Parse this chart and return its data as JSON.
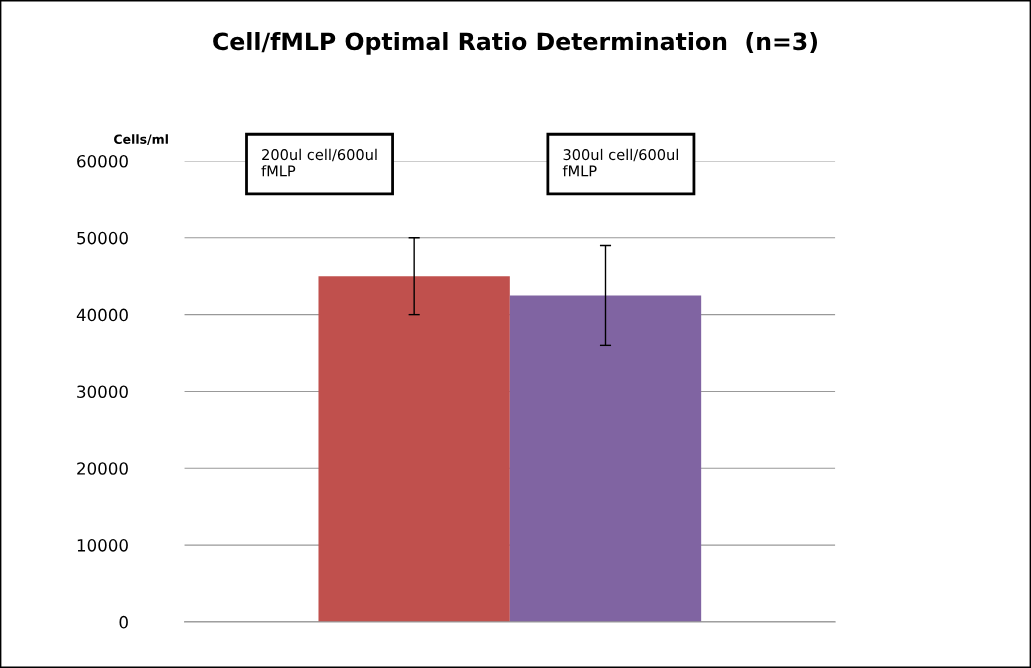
{
  "chart_data": {
    "type": "bar",
    "title": "Cell/fMLP Optimal Ratio Determination  (n=3)",
    "ylabel": "Cells/ml",
    "categories": [
      "200ul cell/600ul\nfMLP",
      "300ul cell/600ul\nfMLP"
    ],
    "values": [
      45000,
      42500
    ],
    "colors": [
      "#c0504d",
      "#8064a2"
    ],
    "errors": [
      5000,
      6500
    ],
    "ylim": [
      0,
      60000
    ],
    "yticks": [
      0,
      10000,
      20000,
      30000,
      40000,
      50000,
      60000
    ],
    "grid": "y"
  }
}
